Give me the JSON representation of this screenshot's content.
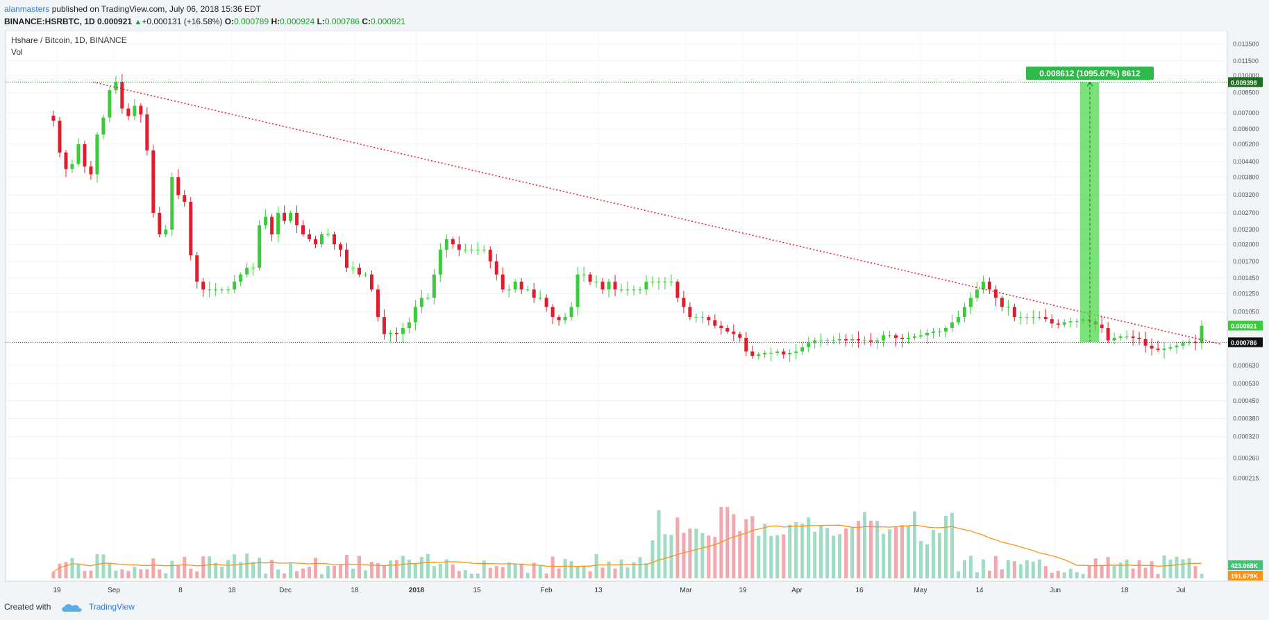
{
  "header": {
    "author": "alanmasters",
    "published_text": " published on TradingView.com, July 06, 2018 15:36 EDT",
    "symbol": "BINANCE:HSRBTC, 1D",
    "last": "0.000921",
    "change": "+0.000131 (+16.58%)",
    "o_label": "O:",
    "o_val": "0.000789",
    "h_label": "H:",
    "h_val": "0.000924",
    "l_label": "L:",
    "l_val": "0.000786",
    "c_label": "C:",
    "c_val": "0.000921"
  },
  "legend": {
    "title": "Hshare / Bitcoin, 1D, BINANCE",
    "vol": "Vol"
  },
  "footer": {
    "created_with": "Created with",
    "brand": "TradingView"
  },
  "colors": {
    "up": "#3bcc3b",
    "down": "#e31c2b",
    "vol_up": "#9fdcc3",
    "vol_down": "#f2a8ad",
    "ma": "#f7931a",
    "trend": "#e31c2b",
    "measure_fill": "#4cd94c",
    "label_green": "#2fb94a",
    "label_orange": "#f7931a"
  },
  "chart_data": {
    "type": "candlestick",
    "price_axis_ticks": [
      "0.013500",
      "0.011500",
      "0.010000",
      "0.008500",
      "0.007000",
      "0.006000",
      "0.005200",
      "0.004400",
      "0.003800",
      "0.003200",
      "0.002700",
      "0.002300",
      "0.002000",
      "0.001700",
      "0.001450",
      "0.001250",
      "0.001050",
      "0.000630",
      "0.000530",
      "0.000450",
      "0.000380",
      "0.000320",
      "0.000260",
      "0.000215"
    ],
    "x_axis_labels": [
      "19",
      "Sep",
      "8",
      "18",
      "Dec",
      "18",
      "2018",
      "15",
      "Feb",
      "13",
      "Mar",
      "19",
      "Apr",
      "16",
      "May",
      "14",
      "Jun",
      "18",
      "Jul"
    ],
    "measure_label": "0.008612 (1095.67%) 8612",
    "price_labels": {
      "top_level": "0.009398",
      "last_price": "0.000921",
      "low_level": "0.000786",
      "vol_last": "423.068K",
      "vol_ma": "191.679K"
    },
    "closes": [
      0.0065,
      0.0048,
      0.0041,
      0.0043,
      0.0052,
      0.0042,
      0.0039,
      0.0057,
      0.0067,
      0.0087,
      0.0094,
      0.0073,
      0.0068,
      0.0075,
      0.0069,
      0.0049,
      0.0027,
      0.0022,
      0.0023,
      0.0038,
      0.0032,
      0.003,
      0.0018,
      0.0014,
      0.0013,
      0.0013,
      0.0013,
      0.0013,
      0.0013,
      0.0014,
      0.0015,
      0.0016,
      0.0016,
      0.0024,
      0.0026,
      0.0022,
      0.0027,
      0.0025,
      0.0027,
      0.0024,
      0.0022,
      0.0021,
      0.002,
      0.0022,
      0.0022,
      0.002,
      0.0019,
      0.0016,
      0.0016,
      0.0015,
      0.0015,
      0.0013,
      0.001,
      0.00085,
      0.00086,
      0.00085,
      0.0009,
      0.00095,
      0.0011,
      0.0012,
      0.0012,
      0.0015,
      0.0019,
      0.0021,
      0.002,
      0.0019,
      0.0019,
      0.0019,
      0.0019,
      0.0019,
      0.0017,
      0.0015,
      0.0013,
      0.0013,
      0.0014,
      0.0013,
      0.0013,
      0.0012,
      0.0012,
      0.0011,
      0.001,
      0.00097,
      0.001,
      0.0011,
      0.0015,
      0.0015,
      0.0014,
      0.0014,
      0.0013,
      0.0014,
      0.0013,
      0.0013,
      0.0013,
      0.0013,
      0.0013,
      0.0014,
      0.0014,
      0.0014,
      0.0014,
      0.0014,
      0.0012,
      0.0011,
      0.001,
      0.001,
      0.001,
      0.00097,
      0.00092,
      0.0009,
      0.00087,
      0.00085,
      0.00082,
      0.00072,
      0.00069,
      0.0007,
      0.00071,
      0.00071,
      0.00072,
      0.0007,
      0.00071,
      0.00072,
      0.00075,
      0.00078,
      0.0008,
      0.0008,
      0.0008,
      0.0008,
      0.00081,
      0.0008,
      0.00081,
      0.0008,
      0.0008,
      0.00079,
      0.0008,
      0.00084,
      0.00084,
      0.00082,
      0.00081,
      0.00082,
      0.00083,
      0.00084,
      0.00086,
      0.00087,
      0.00087,
      0.0009,
      0.00095,
      0.001,
      0.0011,
      0.0012,
      0.0013,
      0.0014,
      0.0013,
      0.0012,
      0.0011,
      0.0011,
      0.001,
      0.001,
      0.001,
      0.001,
      0.001,
      0.00098,
      0.00094,
      0.00093,
      0.00095,
      0.00096,
      0.00096,
      0.00098,
      0.00096,
      0.00093,
      0.0009,
      0.0008,
      0.00082,
      0.00083,
      0.00083,
      0.00082,
      0.00081,
      0.00076,
      0.00074,
      0.00073,
      0.00074,
      0.00075,
      0.00076,
      0.00078,
      0.00079,
      0.00078,
      0.00092
    ],
    "volume_ma_visible": true
  }
}
